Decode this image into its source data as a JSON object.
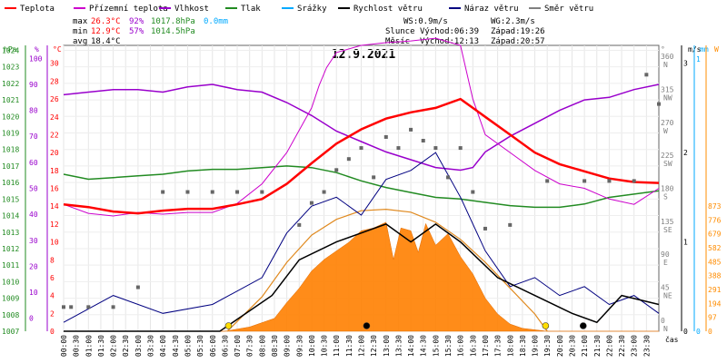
{
  "chart_data": {
    "type": "line",
    "title": "12.9.2021",
    "legend": [
      {
        "label": "Teplota",
        "color": "#ff0000"
      },
      {
        "label": "Přízemní teplota",
        "color": "#cc00cc"
      },
      {
        "label": "Vlhkost",
        "color": "#9900cc"
      },
      {
        "label": "Tlak",
        "color": "#228b22"
      },
      {
        "label": "Srážky",
        "color": "#00aaff"
      },
      {
        "label": "Rychlost větru",
        "color": "#000000"
      },
      {
        "label": "Náraz větru",
        "color": "#000080"
      },
      {
        "label": "Směr větru",
        "color": "#808080"
      }
    ],
    "stats": {
      "max": {
        "label": "max",
        "temp": "26.3°C",
        "hum": "92%",
        "press": "1017.8hPa",
        "rain": "0.0mm"
      },
      "min": {
        "label": "min",
        "temp": "12.9°C",
        "hum": "57%",
        "press": "1014.5hPa"
      },
      "avg": {
        "label": "avg",
        "temp": "18.4°C"
      }
    },
    "info": {
      "ws": "WS:0.9m/s",
      "wg": "WG:2.3m/s",
      "sun": "Slunce",
      "sunrise": "Východ:06:39",
      "sunset": "Západ:19:26",
      "moon": "Měsíc",
      "moonrise": "Východ:12:13",
      "moonset": "Západ:20:57"
    },
    "axis_units": {
      "hpa": "hPa",
      "pct": "%",
      "degc": "°C",
      "deg": "°",
      "ms": "m/s",
      "mm": "mm",
      "w": "W",
      "time": "čas"
    },
    "time_labels": [
      "00:00",
      "00:30",
      "01:00",
      "01:30",
      "02:00",
      "02:30",
      "03:00",
      "03:30",
      "04:00",
      "04:30",
      "05:00",
      "05:30",
      "06:00",
      "06:30",
      "07:00",
      "07:30",
      "08:00",
      "08:30",
      "09:00",
      "09:30",
      "10:00",
      "10:30",
      "11:00",
      "11:30",
      "12:00",
      "12:30",
      "13:00",
      "13:30",
      "14:00",
      "14:30",
      "15:00",
      "15:30",
      "16:00",
      "16:30",
      "17:00",
      "17:30",
      "18:00",
      "18:30",
      "19:00",
      "19:30",
      "20:00",
      "20:30",
      "21:00",
      "21:30",
      "22:00",
      "22:30",
      "23:00",
      "23:30"
    ],
    "pressure_ticks": [
      1007,
      1008,
      1009,
      1010,
      1011,
      1012,
      1013,
      1014,
      1015,
      1016,
      1017,
      1018,
      1019,
      1020,
      1021,
      1022,
      1023,
      1024
    ],
    "humidity_ticks": [
      0,
      10,
      20,
      30,
      40,
      50,
      60,
      70,
      80,
      90,
      100
    ],
    "temp_ticks": [
      0,
      2,
      4,
      6,
      8,
      10,
      12,
      14,
      16,
      18,
      20,
      22,
      24,
      26,
      28,
      30
    ],
    "dir_ticks": [
      {
        "deg": 0,
        "dir": "N",
        "num": "0"
      },
      {
        "deg": 45,
        "dir": "NE",
        "num": "45"
      },
      {
        "deg": 90,
        "dir": "E",
        "num": "90"
      },
      {
        "deg": 135,
        "dir": "SE",
        "num": "135"
      },
      {
        "deg": 180,
        "dir": "S",
        "num": "180"
      },
      {
        "deg": 225,
        "dir": "SW",
        "num": "225"
      },
      {
        "deg": 270,
        "dir": "W",
        "num": "270"
      },
      {
        "deg": 315,
        "dir": "NW",
        "num": "315"
      },
      {
        "deg": 360,
        "dir": "N",
        "num": "360"
      }
    ],
    "wind_ticks": [
      0,
      1,
      2,
      3
    ],
    "rain_ticks": [
      0,
      1
    ],
    "solar_ticks": [
      0,
      97,
      194,
      291,
      388,
      485,
      582,
      679,
      776,
      873
    ],
    "series": {
      "temperature": [
        [
          0,
          14.2
        ],
        [
          1,
          13.9
        ],
        [
          2,
          13.4
        ],
        [
          3,
          13.2
        ],
        [
          4,
          13.5
        ],
        [
          5,
          13.7
        ],
        [
          6,
          13.7
        ],
        [
          7,
          14.2
        ],
        [
          8,
          14.8
        ],
        [
          9,
          16.5
        ],
        [
          10,
          18.8
        ],
        [
          11,
          21.0
        ],
        [
          12,
          22.6
        ],
        [
          13,
          23.8
        ],
        [
          14,
          24.5
        ],
        [
          15,
          25.0
        ],
        [
          16,
          26.0
        ],
        [
          16.5,
          25.0
        ],
        [
          17,
          24.0
        ],
        [
          18,
          22.0
        ],
        [
          19,
          20.0
        ],
        [
          20,
          18.7
        ],
        [
          21,
          17.9
        ],
        [
          22,
          17.1
        ],
        [
          23,
          16.7
        ],
        [
          24,
          16.6
        ]
      ],
      "ground_temp": [
        [
          0,
          14.2
        ],
        [
          1,
          13.2
        ],
        [
          2,
          12.9
        ],
        [
          3,
          13.3
        ],
        [
          4,
          13.1
        ],
        [
          5,
          13.3
        ],
        [
          6,
          13.3
        ],
        [
          7,
          14.3
        ],
        [
          8,
          16.5
        ],
        [
          9,
          20.0
        ],
        [
          10,
          25.0
        ],
        [
          10.3,
          27.5
        ],
        [
          10.6,
          29.5
        ],
        [
          11,
          31.2
        ],
        [
          12,
          32.0
        ],
        [
          13,
          32.3
        ],
        [
          14,
          32.5
        ],
        [
          15,
          32.8
        ],
        [
          16,
          32.0
        ],
        [
          16.5,
          26.0
        ],
        [
          17,
          22.0
        ],
        [
          18,
          20.0
        ],
        [
          19,
          18.0
        ],
        [
          20,
          16.5
        ],
        [
          21,
          16.0
        ],
        [
          22,
          14.8
        ],
        [
          23,
          14.2
        ],
        [
          24,
          16.0
        ]
      ],
      "humidity": [
        [
          0,
          86
        ],
        [
          1,
          87
        ],
        [
          2,
          88
        ],
        [
          3,
          88
        ],
        [
          4,
          87
        ],
        [
          5,
          89
        ],
        [
          6,
          90
        ],
        [
          7,
          88
        ],
        [
          8,
          87
        ],
        [
          9,
          83
        ],
        [
          10,
          78
        ],
        [
          11,
          72
        ],
        [
          12,
          68
        ],
        [
          13,
          64
        ],
        [
          14,
          61
        ],
        [
          15,
          58
        ],
        [
          16,
          57
        ],
        [
          16.5,
          58
        ],
        [
          17,
          64
        ],
        [
          18,
          70
        ],
        [
          19,
          75
        ],
        [
          20,
          80
        ],
        [
          21,
          84
        ],
        [
          22,
          85
        ],
        [
          23,
          88
        ],
        [
          24,
          90
        ]
      ],
      "pressure": [
        [
          0,
          1016.5
        ],
        [
          1,
          1016.2
        ],
        [
          2,
          1016.3
        ],
        [
          3,
          1016.4
        ],
        [
          4,
          1016.5
        ],
        [
          5,
          1016.7
        ],
        [
          6,
          1016.8
        ],
        [
          7,
          1016.8
        ],
        [
          8,
          1016.9
        ],
        [
          9,
          1017.0
        ],
        [
          10,
          1016.9
        ],
        [
          11,
          1016.6
        ],
        [
          12,
          1016.1
        ],
        [
          13,
          1015.7
        ],
        [
          14,
          1015.4
        ],
        [
          15,
          1015.1
        ],
        [
          16,
          1015.0
        ],
        [
          17,
          1014.8
        ],
        [
          18,
          1014.6
        ],
        [
          19,
          1014.5
        ],
        [
          20,
          1014.5
        ],
        [
          21,
          1014.7
        ],
        [
          22,
          1015.1
        ],
        [
          23,
          1015.3
        ],
        [
          24,
          1015.5
        ]
      ],
      "wind_speed": [
        [
          0,
          0
        ],
        [
          5,
          0
        ],
        [
          6.3,
          0
        ],
        [
          8.4,
          0.4
        ],
        [
          9.5,
          0.8
        ],
        [
          11,
          1
        ],
        [
          13,
          1.2
        ],
        [
          14,
          1.0
        ],
        [
          15,
          1.2
        ],
        [
          16,
          1.0
        ],
        [
          17.5,
          0.6
        ],
        [
          19,
          0.4
        ],
        [
          20.5,
          0.2
        ],
        [
          21.5,
          0.1
        ],
        [
          22.5,
          0.4
        ],
        [
          24,
          0.3
        ]
      ],
      "wind_gust": [
        [
          0,
          0.1
        ],
        [
          2,
          0.4
        ],
        [
          4,
          0.2
        ],
        [
          6,
          0.3
        ],
        [
          8,
          0.6
        ],
        [
          9,
          1.1
        ],
        [
          10,
          1.4
        ],
        [
          11,
          1.5
        ],
        [
          12,
          1.3
        ],
        [
          13,
          1.7
        ],
        [
          14,
          1.8
        ],
        [
          15,
          2.0
        ],
        [
          16,
          1.5
        ],
        [
          17,
          0.9
        ],
        [
          18,
          0.5
        ],
        [
          19,
          0.6
        ],
        [
          20,
          0.4
        ],
        [
          21,
          0.5
        ],
        [
          22,
          0.3
        ],
        [
          23,
          0.4
        ],
        [
          24,
          0.2
        ]
      ],
      "wind_direction": [
        [
          0,
          23
        ],
        [
          0.3,
          23
        ],
        [
          1,
          23
        ],
        [
          2,
          23
        ],
        [
          3,
          50
        ],
        [
          4,
          180
        ],
        [
          5,
          180
        ],
        [
          6,
          180
        ],
        [
          7,
          180
        ],
        [
          8,
          180
        ],
        [
          9.5,
          135
        ],
        [
          10,
          165
        ],
        [
          10.5,
          180
        ],
        [
          11,
          210
        ],
        [
          11.5,
          225
        ],
        [
          12,
          240
        ],
        [
          12.5,
          200
        ],
        [
          13,
          255
        ],
        [
          13.5,
          240
        ],
        [
          14,
          265
        ],
        [
          14.5,
          250
        ],
        [
          15,
          240
        ],
        [
          15.5,
          200
        ],
        [
          16,
          240
        ],
        [
          16.5,
          180
        ],
        [
          17,
          130
        ],
        [
          18,
          135
        ],
        [
          19.5,
          195
        ],
        [
          21,
          195
        ],
        [
          22,
          195
        ],
        [
          23,
          195
        ],
        [
          23.5,
          340
        ],
        [
          24,
          300
        ]
      ],
      "solar": [
        [
          0,
          0
        ],
        [
          6.5,
          0
        ],
        [
          7.5,
          30
        ],
        [
          8.5,
          90
        ],
        [
          9,
          200
        ],
        [
          9.5,
          300
        ],
        [
          10,
          420
        ],
        [
          10.5,
          500
        ],
        [
          11,
          560
        ],
        [
          11.5,
          620
        ],
        [
          12,
          700
        ],
        [
          12.5,
          720
        ],
        [
          13,
          760
        ],
        [
          13.3,
          500
        ],
        [
          13.6,
          720
        ],
        [
          14,
          700
        ],
        [
          14.3,
          550
        ],
        [
          14.6,
          750
        ],
        [
          15,
          600
        ],
        [
          15.5,
          680
        ],
        [
          16,
          520
        ],
        [
          16.5,
          400
        ],
        [
          17,
          230
        ],
        [
          17.5,
          120
        ],
        [
          18,
          50
        ],
        [
          18.5,
          20
        ],
        [
          19.5,
          0
        ],
        [
          24,
          0
        ]
      ],
      "solar_theory": [
        [
          6.6,
          0
        ],
        [
          8,
          240
        ],
        [
          9,
          480
        ],
        [
          10,
          670
        ],
        [
          11,
          780
        ],
        [
          12,
          840
        ],
        [
          13,
          850
        ],
        [
          14,
          830
        ],
        [
          15,
          760
        ],
        [
          16,
          640
        ],
        [
          17,
          480
        ],
        [
          18,
          300
        ],
        [
          19,
          120
        ],
        [
          19.5,
          0
        ]
      ]
    }
  }
}
